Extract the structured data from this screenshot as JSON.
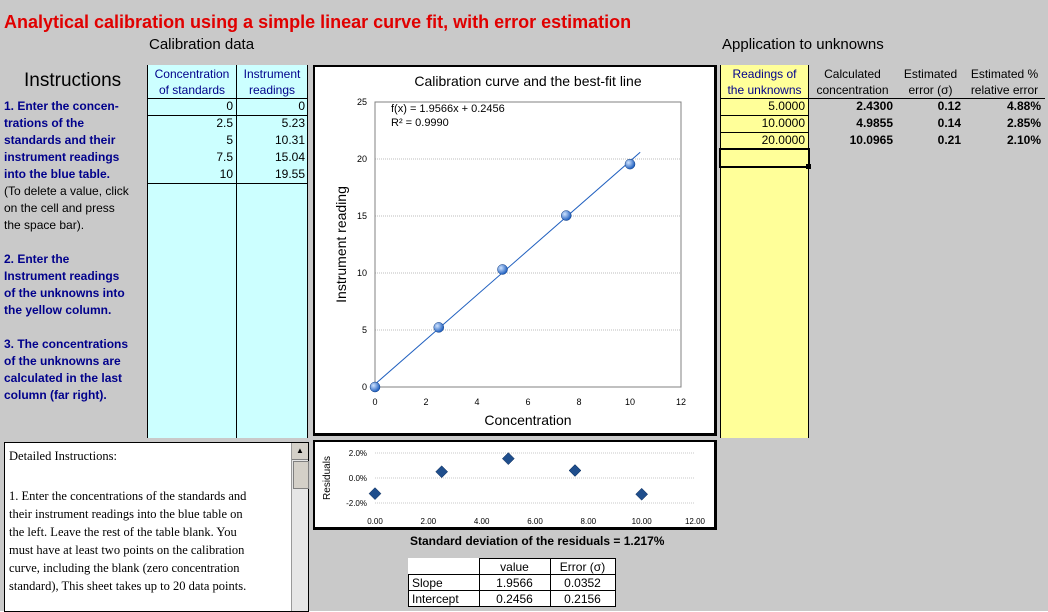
{
  "title": "Analytical calibration using a simple linear curve fit, with error estimation",
  "calibration_section": "Calibration data",
  "application_section": "Application to unknowns",
  "instructions_heading": "Instructions",
  "instructions": [
    "1. Enter the concen-",
    "trations of the",
    "standards and their",
    "instrument readings",
    "into the blue table.",
    "(To delete a value, click",
    " on the cell and press",
    " the space bar).",
    "",
    "2. Enter the",
    "Instrument readings",
    "of the unknowns into",
    "the yellow column.",
    "",
    "3. The concentrations",
    "of the unknowns are",
    "calculated in the last",
    "column (far right)."
  ],
  "calib_table": {
    "col1_header": [
      "Concentration",
      "of standards"
    ],
    "col2_header": [
      "Instrument",
      "readings"
    ],
    "concentrations": [
      "0",
      "2.5",
      "5",
      "7.5",
      "10"
    ],
    "readings": [
      "0",
      "5.23",
      "10.31",
      "15.04",
      "19.55"
    ]
  },
  "unknowns_table": {
    "headers": [
      [
        "Readings of",
        "the unknowns"
      ],
      [
        "Calculated",
        "concentration"
      ],
      [
        "Estimated",
        "error (σ)"
      ],
      [
        "Estimated %",
        "relative error"
      ]
    ],
    "rows": [
      [
        "5.0000",
        "2.4300",
        "0.12",
        "4.88%"
      ],
      [
        "10.0000",
        "4.9855",
        "0.14",
        "2.85%"
      ],
      [
        "20.0000",
        "10.0965",
        "0.21",
        "2.10%"
      ]
    ]
  },
  "chart_data": [
    {
      "type": "scatter",
      "title": "Calibration curve and the best-fit line",
      "xlabel": "Concentration",
      "ylabel": "Instrument reading",
      "xlim": [
        0,
        12
      ],
      "ylim": [
        0,
        25
      ],
      "xticks": [
        "0",
        "2",
        "4",
        "6",
        "8",
        "10",
        "12"
      ],
      "yticks": [
        "0",
        "5",
        "10",
        "15",
        "20",
        "25"
      ],
      "x": [
        0,
        2.5,
        5,
        7.5,
        10
      ],
      "y": [
        0,
        5.23,
        10.31,
        15.04,
        19.55
      ],
      "fit_label": "f(x) = 1.9566x + 0.2456",
      "r2_label": "R² = 0.9990",
      "fit": {
        "slope": 1.9566,
        "intercept": 0.2456
      },
      "point_color": "#1f5fbf",
      "line_color": "#1f5fbf"
    },
    {
      "type": "scatter",
      "ylabel": "Residuals",
      "xlim": [
        0,
        12
      ],
      "ylim": [
        -0.02,
        0.02
      ],
      "xticks": [
        "0.00",
        "2.00",
        "4.00",
        "6.00",
        "8.00",
        "10.00",
        "12.00"
      ],
      "yticks": [
        "2.0%",
        "0.0%",
        "-2.0%"
      ],
      "x": [
        0,
        2.5,
        5,
        7.5,
        10
      ],
      "y": [
        -0.0125,
        0.005,
        0.0155,
        0.006,
        -0.013
      ],
      "point_color": "#1f4e8c"
    }
  ],
  "residual_sd": {
    "label": "Standard deviation of the residuals =",
    "value": "1.217%"
  },
  "stats_table": {
    "headers": [
      "",
      "value",
      "Error (σ)"
    ],
    "rows": [
      [
        "Slope",
        "1.9566",
        "0.0352"
      ],
      [
        "Intercept",
        "0.2456",
        "0.2156"
      ]
    ]
  },
  "detailed_instructions": {
    "heading": "Detailed Instructions:",
    "lines": [
      "1. Enter the concentrations of the standards and",
      "their instrument readings into the blue table on",
      "the left. Leave the rest of the table blank. You",
      "must have at least two points on the calibration",
      "curve, including the blank (zero concentration",
      "standard), This sheet takes up to 20 data points."
    ]
  }
}
